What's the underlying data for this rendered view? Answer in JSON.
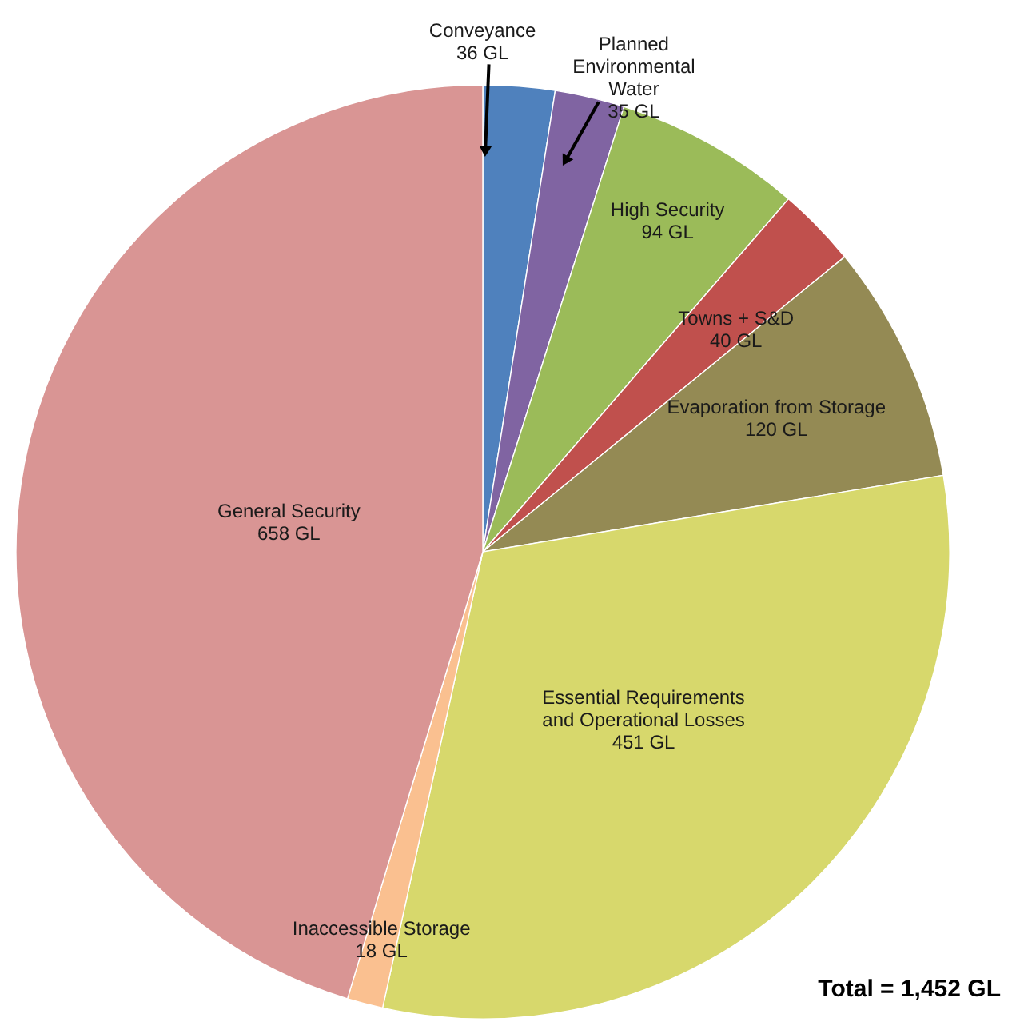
{
  "chart_data": {
    "type": "pie",
    "categories": [
      "Conveyance",
      "Planned Environmental Water",
      "High Security",
      "Towns + S&D",
      "Evaporation from Storage",
      "Essential Requirements and Operational Losses",
      "Inaccessible Storage",
      "General Security"
    ],
    "values": [
      36,
      35,
      94,
      40,
      120,
      451,
      18,
      658
    ],
    "colors": [
      "#4f81bd",
      "#8064a2",
      "#9bbb59",
      "#c0504d",
      "#948a54",
      "#d7d86c",
      "#fac090",
      "#d99594"
    ],
    "value_labels": [
      "36 GL",
      "35 GL",
      "94 GL",
      "40 GL",
      "120 GL",
      "451 GL",
      "18 GL",
      "658 GL"
    ],
    "annotations": [
      "Total = 1,452 GL"
    ]
  }
}
